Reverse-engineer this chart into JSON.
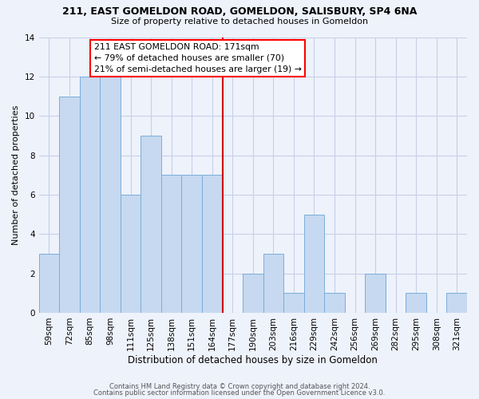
{
  "title": "211, EAST GOMELDON ROAD, GOMELDON, SALISBURY, SP4 6NA",
  "subtitle": "Size of property relative to detached houses in Gomeldon",
  "xlabel": "Distribution of detached houses by size in Gomeldon",
  "ylabel": "Number of detached properties",
  "bin_labels": [
    "59sqm",
    "72sqm",
    "85sqm",
    "98sqm",
    "111sqm",
    "125sqm",
    "138sqm",
    "151sqm",
    "164sqm",
    "177sqm",
    "190sqm",
    "203sqm",
    "216sqm",
    "229sqm",
    "242sqm",
    "256sqm",
    "269sqm",
    "282sqm",
    "295sqm",
    "308sqm",
    "321sqm"
  ],
  "bar_values": [
    3,
    11,
    12,
    12,
    6,
    9,
    7,
    7,
    7,
    0,
    2,
    3,
    1,
    5,
    1,
    0,
    2,
    0,
    1,
    0,
    1
  ],
  "bar_color": "#c6d9f0",
  "bar_edgecolor": "#7aaedb",
  "vline_color": "#cc0000",
  "annotation_title": "211 EAST GOMELDON ROAD: 171sqm",
  "annotation_line1": "← 79% of detached houses are smaller (70)",
  "annotation_line2": "21% of semi-detached houses are larger (19) →",
  "ylim": [
    0,
    14
  ],
  "yticks": [
    0,
    2,
    4,
    6,
    8,
    10,
    12,
    14
  ],
  "footer1": "Contains HM Land Registry data © Crown copyright and database right 2024.",
  "footer2": "Contains public sector information licensed under the Open Government Licence v3.0.",
  "bg_color": "#eef2fb",
  "grid_color": "#c8cfe8"
}
